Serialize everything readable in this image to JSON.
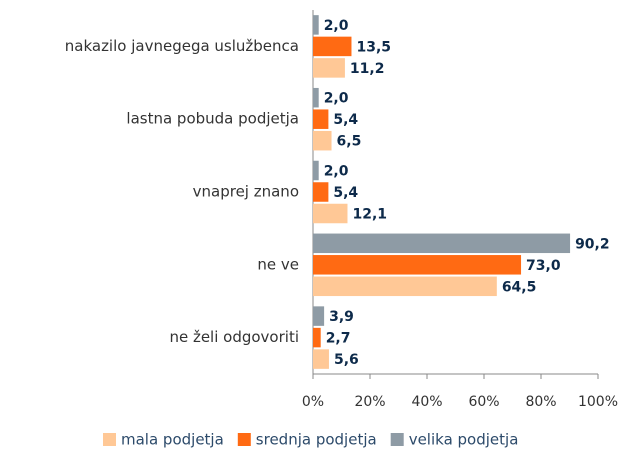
{
  "chart_data": {
    "type": "hbar",
    "categories": [
      "nakazilo javnegega uslužbenca",
      "lastna pobuda podjetja",
      "vnaprej znano",
      "ne ve",
      "ne želi odgovoriti"
    ],
    "series": [
      {
        "name": "mala podjetja",
        "color": "#ffc896",
        "values": [
          11.2,
          6.5,
          12.1,
          64.5,
          5.6
        ],
        "value_labels": [
          "11,2",
          "6,5",
          "12,1",
          "64,5",
          "5,6"
        ]
      },
      {
        "name": "srednja podjetja",
        "color": "#ff6a13",
        "values": [
          13.5,
          5.4,
          5.4,
          73.0,
          2.7
        ],
        "value_labels": [
          "13,5",
          "5,4",
          "5,4",
          "73,0",
          "2,7"
        ]
      },
      {
        "name": "velika podjetja",
        "color": "#8e9ba5",
        "values": [
          2.0,
          2.0,
          2.0,
          90.2,
          3.9
        ],
        "value_labels": [
          "2,0",
          "2,0",
          "2,0",
          "90,2",
          "3,9"
        ]
      }
    ],
    "xlim": [
      0,
      100
    ],
    "xticks": [
      {
        "value": 0,
        "label": "0%"
      },
      {
        "value": 20,
        "label": "20%"
      },
      {
        "value": 40,
        "label": "40%"
      },
      {
        "value": 60,
        "label": "60%"
      },
      {
        "value": 80,
        "label": "80%"
      },
      {
        "value": 100,
        "label": "100%"
      }
    ],
    "legend": "bottom"
  }
}
